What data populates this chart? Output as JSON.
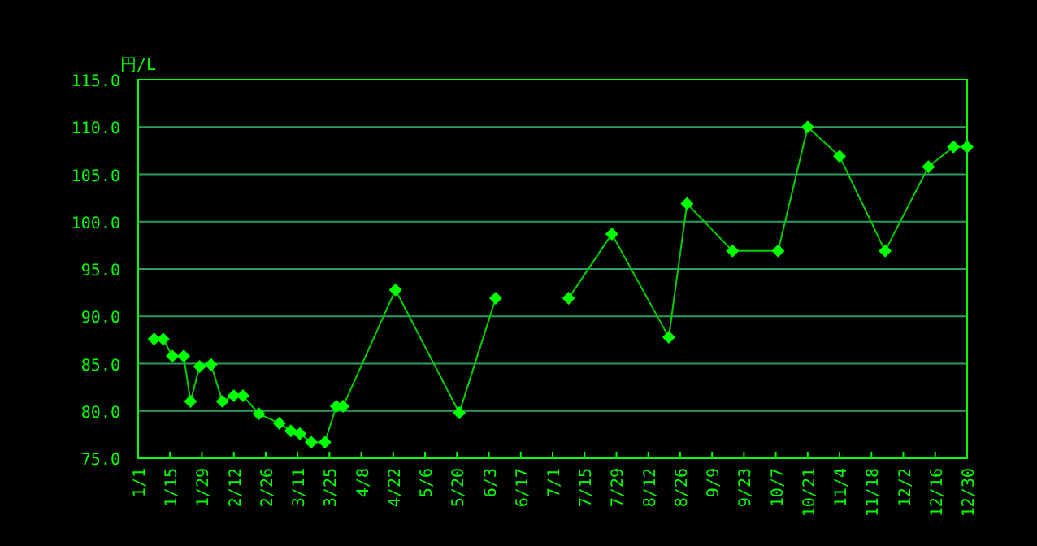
{
  "chart_data": {
    "type": "line",
    "ylabel": "円/L",
    "color": "#00ff00",
    "marker": "diamond",
    "grid": "y",
    "line_style": "solid",
    "x": [
      "--01-08",
      "--01-12",
      "--01-16",
      "--01-21",
      "--01-24",
      "--01-28",
      "--02-02",
      "--02-07",
      "--02-12",
      "--02-16",
      "--02-23",
      "--03-03",
      "--03-08",
      "--03-12",
      "--03-17",
      "--03-23",
      "--03-28",
      "--03-31",
      "--04-23",
      "--05-21",
      "--06-06",
      "--06-22",
      "--07-08",
      "--07-27",
      "--08-21",
      "--08-29",
      "--09-18",
      "--10-08",
      "--10-21",
      "--11-04",
      "--11-24",
      "--12-13",
      "--12-24",
      "--12-30"
    ],
    "values": [
      87.6,
      87.6,
      85.8,
      85.8,
      81.0,
      84.7,
      84.9,
      81.0,
      81.6,
      81.6,
      79.7,
      78.7,
      77.9,
      77.6,
      76.7,
      76.7,
      80.5,
      80.5,
      92.8,
      79.8,
      91.9,
      null,
      91.9,
      98.7,
      87.8,
      101.9,
      96.9,
      96.9,
      110.0,
      106.9,
      96.9,
      105.8,
      107.9,
      107.9
    ],
    "xlim": [
      "--01-01",
      "--12-30"
    ],
    "xticks": [
      {
        "value": "--01-01",
        "label": "1/1"
      },
      {
        "value": "--01-15",
        "label": "1/15"
      },
      {
        "value": "--01-29",
        "label": "1/29"
      },
      {
        "value": "--02-12",
        "label": "2/12"
      },
      {
        "value": "--02-26",
        "label": "2/26"
      },
      {
        "value": "--03-11",
        "label": "3/11"
      },
      {
        "value": "--03-25",
        "label": "3/25"
      },
      {
        "value": "--04-08",
        "label": "4/8"
      },
      {
        "value": "--04-22",
        "label": "4/22"
      },
      {
        "value": "--05-06",
        "label": "5/6"
      },
      {
        "value": "--05-20",
        "label": "5/20"
      },
      {
        "value": "--06-03",
        "label": "6/3"
      },
      {
        "value": "--06-17",
        "label": "6/17"
      },
      {
        "value": "--07-01",
        "label": "7/1"
      },
      {
        "value": "--07-15",
        "label": "7/15"
      },
      {
        "value": "--07-29",
        "label": "7/29"
      },
      {
        "value": "--08-12",
        "label": "8/12"
      },
      {
        "value": "--08-26",
        "label": "8/26"
      },
      {
        "value": "--09-09",
        "label": "9/9"
      },
      {
        "value": "--09-23",
        "label": "9/23"
      },
      {
        "value": "--10-07",
        "label": "10/7"
      },
      {
        "value": "--10-21",
        "label": "10/21"
      },
      {
        "value": "--11-04",
        "label": "11/4"
      },
      {
        "value": "--11-18",
        "label": "11/18"
      },
      {
        "value": "--12-02",
        "label": "12/2"
      },
      {
        "value": "--12-16",
        "label": "12/16"
      },
      {
        "value": "--12-30",
        "label": "12/30"
      }
    ],
    "ylim": [
      75,
      115
    ],
    "yticks": [
      {
        "value": 75,
        "label": "75.0"
      },
      {
        "value": 80,
        "label": "80.0"
      },
      {
        "value": 85,
        "label": "85.0"
      },
      {
        "value": 90,
        "label": "90.0"
      },
      {
        "value": 95,
        "label": "95.0"
      },
      {
        "value": 100,
        "label": "100.0"
      },
      {
        "value": 105,
        "label": "105.0"
      },
      {
        "value": 110,
        "label": "110.0"
      },
      {
        "value": 115,
        "label": "115.0"
      }
    ]
  }
}
